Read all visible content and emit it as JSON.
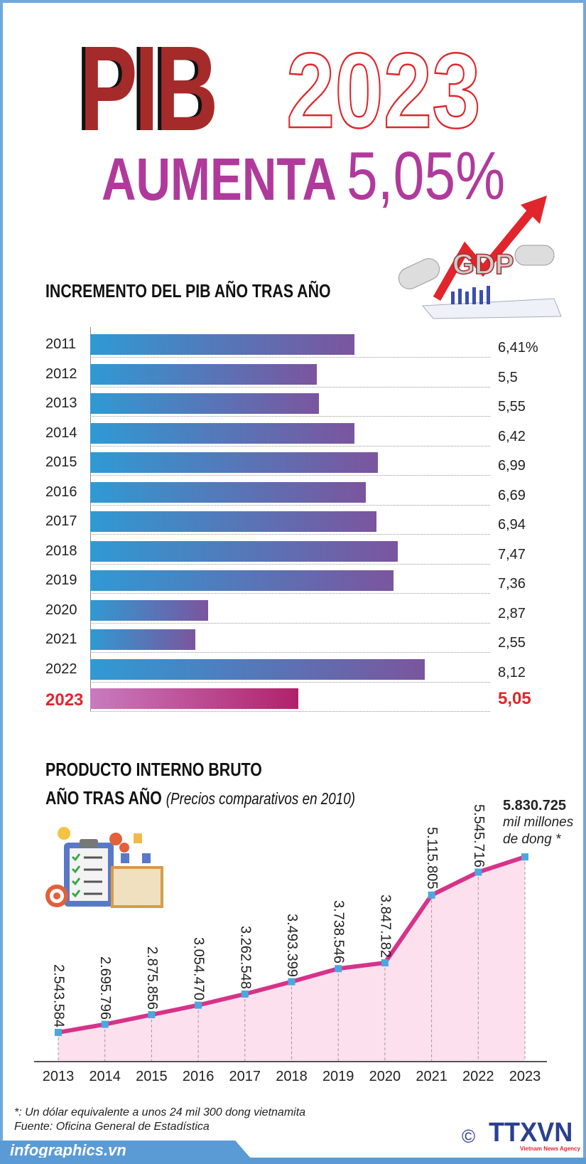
{
  "header": {
    "title_word": "PIB",
    "title_year": "2023",
    "subtitle_word": "AUMENTA",
    "subtitle_value": "5,05%",
    "illustration_text": "GDP"
  },
  "colors": {
    "bar_start": "#2f9ad3",
    "bar_end": "#7b559e",
    "highlight": "#e0262c",
    "line": "#d6338a",
    "fill": "#fde0ee",
    "marker": "#4aa8df",
    "title_red": "#a52a2a",
    "purple": "#b03a9c",
    "brand_blue": "#5b9bd5"
  },
  "chart_data": [
    {
      "type": "bar",
      "orientation": "horizontal",
      "title": "INCREMENTO DEL PIB AÑO TRAS AÑO",
      "categories": [
        "2011",
        "2012",
        "2013",
        "2014",
        "2015",
        "2016",
        "2017",
        "2018",
        "2019",
        "2020",
        "2021",
        "2022",
        "2023"
      ],
      "values": [
        6.41,
        5.5,
        5.55,
        6.42,
        6.99,
        6.69,
        6.94,
        7.47,
        7.36,
        2.87,
        2.55,
        8.12,
        5.05
      ],
      "labels": [
        "6,41%",
        "5,5",
        "5,55",
        "6,42",
        "6,99",
        "6,69",
        "6,94",
        "7,47",
        "7,36",
        "2,87",
        "2,55",
        "8,12",
        "5,05"
      ],
      "highlight": "2023",
      "unit": "%"
    },
    {
      "type": "area",
      "title": "PRODUCTO INTERNO BRUTO",
      "title_line2": "AÑO TRAS AÑO",
      "subtitle": "(Precios comparativos en 2010)",
      "x": [
        "2013",
        "2014",
        "2015",
        "2016",
        "2017",
        "2018",
        "2019",
        "2020",
        "2021",
        "2022",
        "2023"
      ],
      "values": [
        2543584,
        2695796,
        2875856,
        3054470,
        3262548,
        3493399,
        3738546,
        3847182,
        5115805,
        5545716,
        5830725
      ],
      "labels": [
        "2.543.584",
        "2.695.796",
        "2.875.856",
        "3.054.470",
        "3.262.548",
        "3.493.399",
        "3.738.546",
        "3.847.182",
        "5.115.805",
        "5.545.716",
        "5.830.725"
      ],
      "last_unit_line1": "mil millones",
      "last_unit_line2": "de dong *"
    }
  ],
  "footer": {
    "note": "*: Un dólar equivalente a unos 24 mil 300 dong vietnamita",
    "source": "Fuente: Oficina General de Estadística",
    "site": "infographics.vn",
    "copyright": "©",
    "agency": "TTXVN",
    "agency_sub": "Vietnam News Agency"
  }
}
